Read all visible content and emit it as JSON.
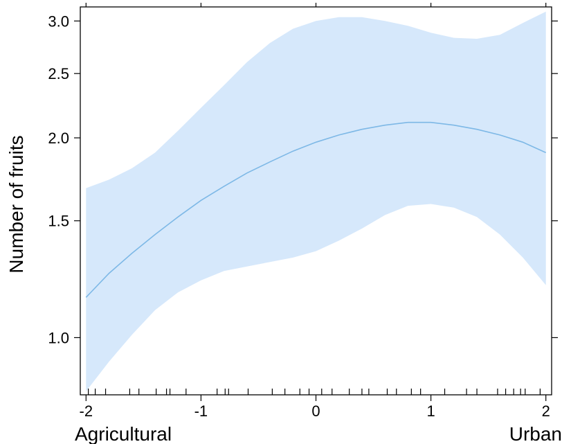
{
  "chart_data": {
    "type": "line",
    "title": "",
    "xlabel": "",
    "ylabel": "Number of fruits",
    "y_scale": "log",
    "xlim": [
      -2.05,
      2.05
    ],
    "ylim": [
      0.82,
      3.15
    ],
    "x_ticks": [
      -2,
      -1,
      0,
      1,
      2
    ],
    "x_tick_labels": [
      "-2",
      "-1",
      "0",
      "1",
      "2"
    ],
    "y_ticks": [
      1.0,
      1.5,
      2.0,
      2.5,
      3.0
    ],
    "y_tick_labels": [
      "1.0",
      "1.5",
      "2.0",
      "2.5",
      "3.0"
    ],
    "x_end_labels": {
      "left": "Agricultural",
      "right": "Urban"
    },
    "grid": false,
    "legend": "none",
    "series": [
      {
        "x": [
          -2.0,
          -1.8,
          -1.6,
          -1.4,
          -1.2,
          -1.0,
          -0.8,
          -0.6,
          -0.4,
          -0.2,
          0.0,
          0.2,
          0.4,
          0.6,
          0.8,
          1.0,
          1.2,
          1.4,
          1.6,
          1.8,
          2.0
        ],
        "y": [
          1.15,
          1.25,
          1.34,
          1.43,
          1.52,
          1.61,
          1.69,
          1.77,
          1.84,
          1.91,
          1.97,
          2.02,
          2.06,
          2.09,
          2.11,
          2.11,
          2.09,
          2.06,
          2.02,
          1.97,
          1.9
        ],
        "lower": [
          0.83,
          0.92,
          1.01,
          1.1,
          1.17,
          1.22,
          1.26,
          1.28,
          1.3,
          1.32,
          1.35,
          1.4,
          1.46,
          1.53,
          1.58,
          1.59,
          1.57,
          1.52,
          1.43,
          1.32,
          1.2
        ],
        "upper": [
          1.68,
          1.73,
          1.8,
          1.9,
          2.05,
          2.22,
          2.4,
          2.6,
          2.78,
          2.92,
          3.0,
          3.04,
          3.04,
          3.0,
          2.95,
          2.88,
          2.83,
          2.82,
          2.86,
          2.98,
          3.1
        ]
      }
    ],
    "rug_x": [
      -1.98,
      -1.92,
      -1.83,
      -1.62,
      -1.54,
      -1.39,
      -1.3,
      -1.27,
      -1.13,
      -0.86,
      -0.79,
      -0.76,
      -0.59,
      -0.38,
      -0.27,
      -0.14,
      -0.06,
      0.05,
      0.14,
      0.29,
      0.4,
      0.46,
      0.62,
      0.7,
      0.83,
      0.91,
      1.12,
      1.31,
      1.4,
      1.58,
      1.65,
      1.72,
      1.78,
      1.82,
      1.95
    ],
    "colors": {
      "band": "#d6e8fb",
      "line": "#7db8e6",
      "axis": "#000000"
    }
  }
}
